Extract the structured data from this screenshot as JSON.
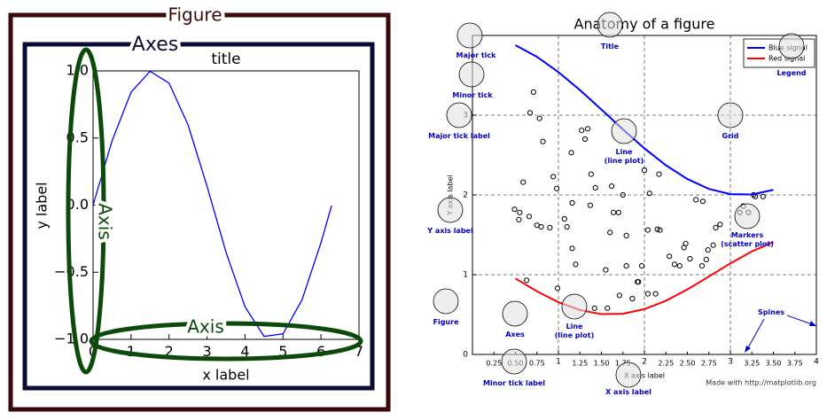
{
  "chart_data": [
    {
      "type": "line",
      "title": "title",
      "xlabel": "x label",
      "ylabel": "y label",
      "x": [
        0,
        0.5,
        1,
        1.5,
        2,
        2.5,
        3,
        3.5,
        4,
        4.5,
        5,
        5.5,
        6,
        6.28
      ],
      "series": [
        {
          "color": "#0000ff",
          "values": [
            0,
            0.479,
            0.841,
            0.997,
            0.909,
            0.598,
            0.141,
            -0.351,
            -0.757,
            -0.978,
            -0.959,
            -0.706,
            -0.279,
            -0.003
          ]
        }
      ],
      "xlim": [
        0,
        7
      ],
      "ylim": [
        -1,
        1
      ],
      "xticks": [
        0,
        1,
        2,
        3,
        4,
        5,
        6,
        7
      ],
      "yticks": [
        {
          "value": -1,
          "label": "−1.0"
        },
        {
          "value": -0.5,
          "label": "−0.5"
        },
        {
          "value": 0,
          "label": "0.0"
        },
        {
          "value": 0.5,
          "label": "0.5"
        },
        {
          "value": 1,
          "label": "1.0"
        }
      ],
      "annotations": [
        "Figure",
        "Axes",
        "Axis",
        "Axis"
      ]
    },
    {
      "type": "line",
      "title": "Anatomy of a figure",
      "xlabel": "X axis label",
      "ylabel": "Y axis label",
      "x": [
        0.5,
        0.75,
        1,
        1.25,
        1.5,
        1.75,
        2,
        2.25,
        2.5,
        2.75,
        3,
        3.25,
        3.5
      ],
      "series": [
        {
          "name": "Blue signal",
          "color": "#0000ff",
          "values": [
            3.878,
            3.732,
            3.54,
            3.315,
            3.071,
            2.822,
            2.584,
            2.372,
            2.199,
            2.076,
            2.01,
            2.006,
            2.064
          ]
        },
        {
          "name": "Red signal",
          "color": "#ff0000",
          "values": [
            0.952,
            0.792,
            0.655,
            0.556,
            0.505,
            0.51,
            0.568,
            0.673,
            0.815,
            0.977,
            1.142,
            1.292,
            1.408
          ]
        }
      ],
      "scatter": {
        "x": [
          0.71,
          0.67,
          0.78,
          0.82,
          0.59,
          0.94,
          0.98,
          0.49,
          0.55,
          0.66,
          0.54,
          0.75,
          0.9,
          1.07,
          1.1,
          1.16,
          1.2,
          1.15,
          1.27,
          1.34,
          1.31,
          1.38,
          1.43,
          1.37,
          1.62,
          1.64,
          1.6,
          1.55,
          1.16,
          0.8,
          0.99,
          0.63,
          1.42,
          1.57,
          1.71,
          1.86,
          1.79,
          1.79,
          1.7,
          1.75,
          2.0,
          2.06,
          2.17,
          2.04,
          1.97,
          1.92,
          2.04,
          2.13,
          1.93,
          2.15,
          2.18,
          2.29,
          2.35,
          2.41,
          2.46,
          2.48,
          2.53,
          2.6,
          2.68,
          2.67,
          2.72,
          2.74,
          2.8,
          2.88,
          2.83,
          3.11,
          3.15,
          3.21,
          3.29,
          3.38,
          3.27
        ],
        "y": [
          3.29,
          3.03,
          2.96,
          2.67,
          2.16,
          2.23,
          2.08,
          1.82,
          1.78,
          1.73,
          1.69,
          1.62,
          1.59,
          1.7,
          1.6,
          1.33,
          1.13,
          2.53,
          2.81,
          2.83,
          2.7,
          2.26,
          2.09,
          1.87,
          2.11,
          1.78,
          1.53,
          1.06,
          1.9,
          1.6,
          0.83,
          0.93,
          0.58,
          0.58,
          0.74,
          0.7,
          1.11,
          1.49,
          1.78,
          2.0,
          2.31,
          2.02,
          2.26,
          1.56,
          1.11,
          0.91,
          0.76,
          0.76,
          0.91,
          1.57,
          1.56,
          1.23,
          1.13,
          1.11,
          1.34,
          1.39,
          1.2,
          1.94,
          1.92,
          1.11,
          1.19,
          1.31,
          1.37,
          1.63,
          1.59,
          1.78,
          1.86,
          1.78,
          1.98,
          1.98,
          2.0
        ]
      },
      "xlim": [
        0,
        4
      ],
      "ylim": [
        0,
        4
      ],
      "xticks": [
        1,
        2,
        3,
        4
      ],
      "xticks_minor": [
        0.25,
        {
          "value": 0.5,
          "label": "0.50"
        },
        0.75,
        1.25,
        {
          "value": 1.5,
          "label": "1.50"
        },
        1.75,
        2.25,
        {
          "value": 2.5,
          "label": "2.50"
        },
        2.75,
        3.25,
        {
          "value": 3.5,
          "label": "3.50"
        },
        3.75
      ],
      "yticks": [
        0,
        1,
        2,
        3
      ],
      "grid": true,
      "legend": "upper right",
      "footnote": "Made with http://matplotlib.org",
      "annotations": [
        [
          "Major tick"
        ],
        [
          "Minor tick"
        ],
        [
          "Major tick label"
        ],
        [
          "Title"
        ],
        [
          "Legend"
        ],
        [
          "Grid"
        ],
        [
          "Line",
          "(line plot)"
        ],
        [
          "Y axis label"
        ],
        [
          "Markers",
          "(scatter plot)"
        ],
        [
          "Figure"
        ],
        [
          "Axes"
        ],
        [
          "Line",
          "(line plot)"
        ],
        [
          "Spines"
        ],
        [
          "Minor tick label"
        ],
        [
          "X axis label"
        ]
      ]
    }
  ]
}
